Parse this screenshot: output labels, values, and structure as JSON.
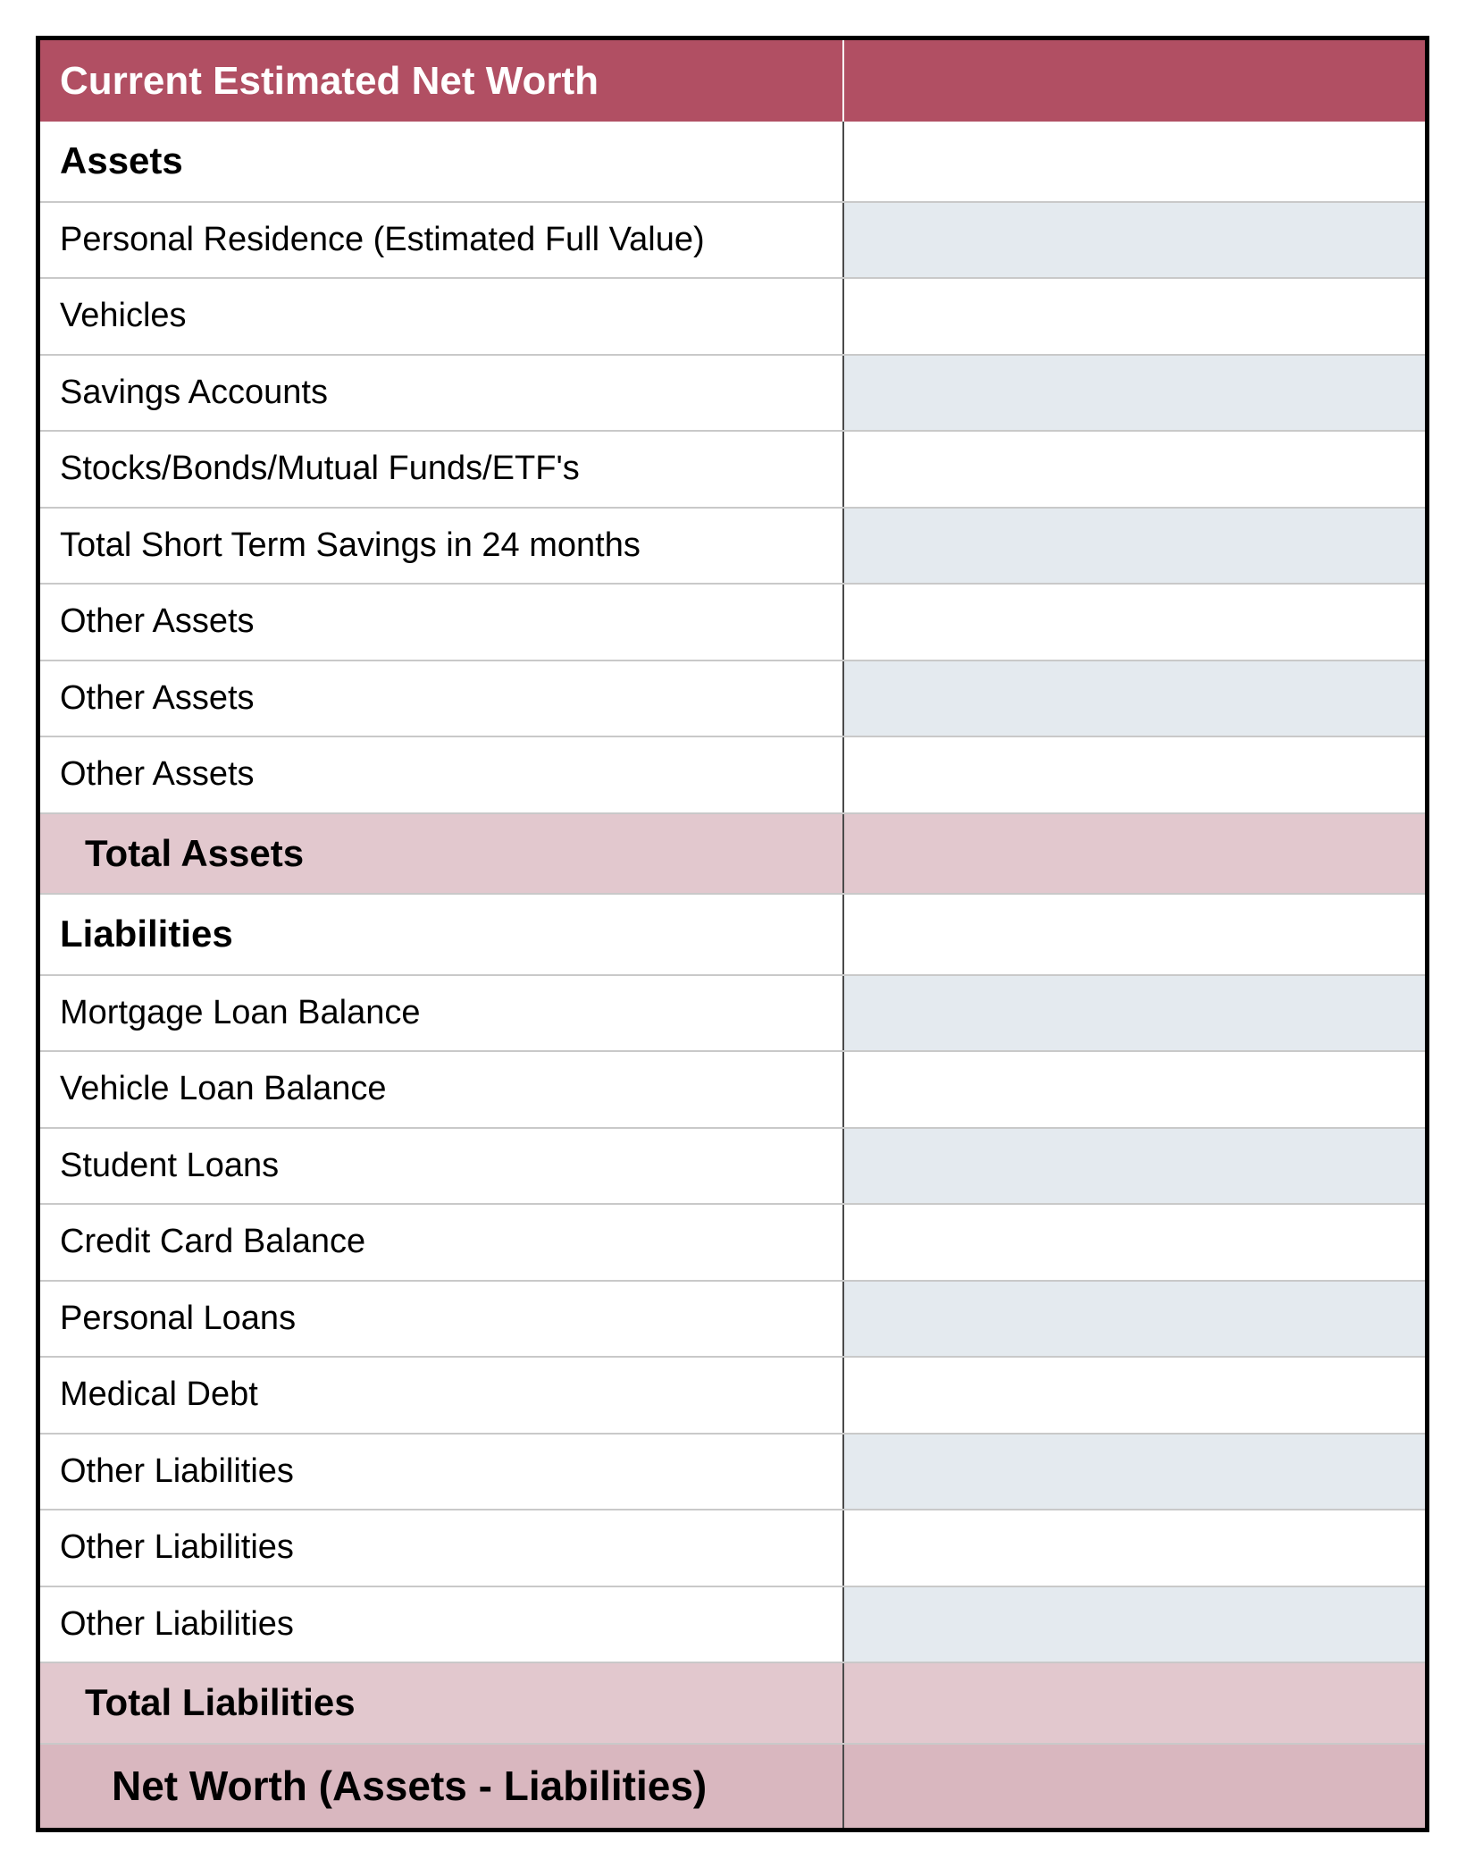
{
  "colors": {
    "header_bg": "#b14f63",
    "shade_bg": "#e4eaef",
    "subtotal_bg": "#e2c8ce",
    "grand_bg": "#d9b7bf",
    "border_outer": "#000000",
    "row_divider": "#c9c9c9",
    "column_divider": "#4a4a4a"
  },
  "table": {
    "type": "table",
    "column_widths_pct": [
      58,
      42
    ],
    "header": {
      "label": "Current Estimated Net Worth",
      "value": ""
    },
    "rows": [
      {
        "kind": "section",
        "label": "Assets",
        "value": "",
        "shaded": false
      },
      {
        "kind": "item",
        "label": "Personal Residence (Estimated Full Value)",
        "value": "",
        "shaded": true
      },
      {
        "kind": "item",
        "label": "Vehicles",
        "value": "",
        "shaded": false
      },
      {
        "kind": "item",
        "label": "Savings Accounts",
        "value": "",
        "shaded": true
      },
      {
        "kind": "item",
        "label": "Stocks/Bonds/Mutual Funds/ETF's",
        "value": "",
        "shaded": false
      },
      {
        "kind": "item",
        "label": "Total Short Term Savings in 24 months",
        "value": "",
        "shaded": true
      },
      {
        "kind": "item",
        "label": "Other Assets",
        "value": "",
        "shaded": false
      },
      {
        "kind": "item",
        "label": "Other Assets",
        "value": "",
        "shaded": true
      },
      {
        "kind": "item",
        "label": "Other Assets",
        "value": "",
        "shaded": false
      },
      {
        "kind": "subtotal",
        "label": "Total Assets",
        "value": "",
        "shaded": false
      },
      {
        "kind": "section",
        "label": "Liabilities",
        "value": "",
        "shaded": false
      },
      {
        "kind": "item",
        "label": "Mortgage Loan Balance",
        "value": "",
        "shaded": true
      },
      {
        "kind": "item",
        "label": "Vehicle Loan Balance",
        "value": "",
        "shaded": false
      },
      {
        "kind": "item",
        "label": "Student Loans",
        "value": "",
        "shaded": true
      },
      {
        "kind": "item",
        "label": "Credit Card Balance",
        "value": "",
        "shaded": false
      },
      {
        "kind": "item",
        "label": "Personal Loans",
        "value": "",
        "shaded": true
      },
      {
        "kind": "item",
        "label": "Medical Debt",
        "value": "",
        "shaded": false
      },
      {
        "kind": "item",
        "label": "Other Liabilities",
        "value": "",
        "shaded": true
      },
      {
        "kind": "item",
        "label": "Other Liabilities",
        "value": "",
        "shaded": false
      },
      {
        "kind": "item",
        "label": "Other Liabilities",
        "value": "",
        "shaded": true
      },
      {
        "kind": "subtotal",
        "label": "Total Liabilities",
        "value": "",
        "shaded": false
      },
      {
        "kind": "grand",
        "label": "Net Worth (Assets - Liabilities)",
        "value": "",
        "shaded": false
      }
    ]
  }
}
